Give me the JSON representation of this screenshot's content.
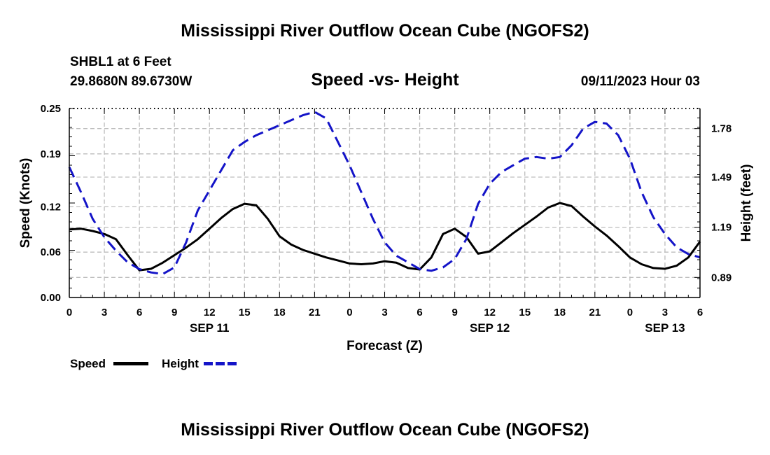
{
  "header": {
    "title_top": "Mississippi River Outflow Ocean Cube (NGOFS2)",
    "station": "SHBL1 at 6 Feet",
    "coords": "29.8680N  89.6730W",
    "subtitle": "Speed -vs- Height",
    "datetime": "09/11/2023 Hour 03",
    "title_bottom": "Mississippi River Outflow Ocean Cube (NGOFS2)"
  },
  "legend": {
    "speed_label": "Speed",
    "height_label": "Height",
    "speed_color": "#000000",
    "height_color": "#1414c8"
  },
  "chart_data": {
    "type": "line",
    "xlabel": "Forecast (Z)",
    "ylabel": "Speed (Knots)",
    "y2label": "Height (feet)",
    "xlim": [
      0,
      54
    ],
    "ylim": [
      0,
      0.25
    ],
    "y2lim": [
      0.77,
      1.9
    ],
    "x_ticks": [
      0,
      3,
      6,
      9,
      12,
      15,
      18,
      21,
      24,
      27,
      30,
      33,
      36,
      39,
      42,
      45,
      48,
      51,
      54
    ],
    "x_tick_labels": [
      "0",
      "3",
      "6",
      "9",
      "12",
      "15",
      "18",
      "21",
      "0",
      "3",
      "6",
      "9",
      "12",
      "15",
      "18",
      "21",
      "0",
      "3",
      "6"
    ],
    "date_labels": [
      {
        "x": 12,
        "label": "SEP 11"
      },
      {
        "x": 36,
        "label": "SEP 12"
      },
      {
        "x": 51,
        "label": "SEP 13"
      }
    ],
    "y_ticks": [
      0.0,
      0.06,
      0.12,
      0.19,
      0.25
    ],
    "y_tick_labels": [
      "0.00",
      "0.06",
      "0.12",
      "0.19",
      "0.25"
    ],
    "y2_ticks": [
      0.89,
      1.19,
      1.49,
      1.78
    ],
    "y2_tick_labels": [
      "0.89",
      "1.19",
      "1.49",
      "1.78"
    ],
    "series": [
      {
        "name": "Speed",
        "axis": "left",
        "style": "solid",
        "color": "#000000",
        "x": [
          0,
          1,
          2,
          3,
          4,
          5,
          6,
          7,
          8,
          9,
          10,
          11,
          12,
          13,
          14,
          15,
          16,
          17,
          18,
          19,
          20,
          21,
          22,
          23,
          24,
          25,
          26,
          27,
          28,
          29,
          30,
          31,
          32,
          33,
          34,
          35,
          36,
          37,
          38,
          39,
          40,
          41,
          42,
          43,
          44,
          45,
          46,
          47,
          48,
          49,
          50,
          51,
          52,
          53,
          54
        ],
        "values": [
          0.09,
          0.091,
          0.088,
          0.084,
          0.077,
          0.056,
          0.036,
          0.038,
          0.046,
          0.056,
          0.066,
          0.077,
          0.091,
          0.105,
          0.117,
          0.124,
          0.122,
          0.104,
          0.081,
          0.07,
          0.063,
          0.058,
          0.053,
          0.049,
          0.045,
          0.044,
          0.045,
          0.048,
          0.046,
          0.039,
          0.037,
          0.053,
          0.084,
          0.091,
          0.08,
          0.058,
          0.061,
          0.073,
          0.085,
          0.096,
          0.107,
          0.119,
          0.125,
          0.121,
          0.107,
          0.094,
          0.082,
          0.068,
          0.053,
          0.044,
          0.039,
          0.038,
          0.042,
          0.053,
          0.074
        ]
      },
      {
        "name": "Height",
        "axis": "right",
        "style": "dashed",
        "color": "#1414c8",
        "x": [
          0,
          1,
          2,
          3,
          4,
          5,
          6,
          7,
          8,
          9,
          10,
          11,
          12,
          13,
          14,
          15,
          16,
          17,
          18,
          19,
          20,
          21,
          22,
          23,
          24,
          25,
          26,
          27,
          28,
          29,
          30,
          31,
          32,
          33,
          34,
          35,
          36,
          37,
          38,
          39,
          40,
          41,
          42,
          43,
          44,
          45,
          46,
          47,
          48,
          49,
          50,
          51,
          52,
          53,
          54
        ],
        "values": [
          1.55,
          1.4,
          1.24,
          1.13,
          1.05,
          0.98,
          0.94,
          0.92,
          0.91,
          0.95,
          1.1,
          1.29,
          1.41,
          1.53,
          1.65,
          1.7,
          1.74,
          1.77,
          1.8,
          1.83,
          1.86,
          1.88,
          1.84,
          1.7,
          1.56,
          1.4,
          1.24,
          1.1,
          1.02,
          0.98,
          0.94,
          0.93,
          0.95,
          1.0,
          1.12,
          1.33,
          1.45,
          1.52,
          1.56,
          1.6,
          1.61,
          1.6,
          1.61,
          1.68,
          1.78,
          1.82,
          1.81,
          1.74,
          1.6,
          1.4,
          1.25,
          1.15,
          1.07,
          1.03,
          1.01
        ]
      }
    ]
  }
}
